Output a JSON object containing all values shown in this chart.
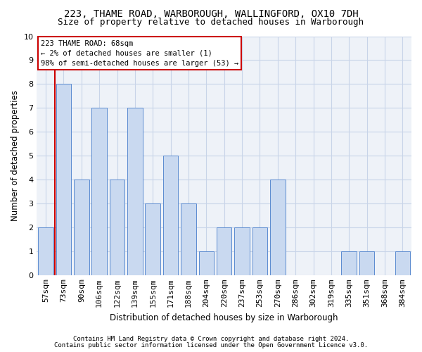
{
  "title_line1": "223, THAME ROAD, WARBOROUGH, WALLINGFORD, OX10 7DH",
  "title_line2": "Size of property relative to detached houses in Warborough",
  "xlabel": "Distribution of detached houses by size in Warborough",
  "ylabel": "Number of detached properties",
  "categories": [
    "57sqm",
    "73sqm",
    "90sqm",
    "106sqm",
    "122sqm",
    "139sqm",
    "155sqm",
    "171sqm",
    "188sqm",
    "204sqm",
    "220sqm",
    "237sqm",
    "253sqm",
    "270sqm",
    "286sqm",
    "302sqm",
    "319sqm",
    "335sqm",
    "351sqm",
    "368sqm",
    "384sqm"
  ],
  "values": [
    2,
    8,
    4,
    7,
    4,
    7,
    3,
    5,
    3,
    1,
    2,
    2,
    2,
    4,
    0,
    0,
    0,
    1,
    1,
    0,
    1
  ],
  "bar_color": "#c9d9f0",
  "bar_edge_color": "#5b8bd0",
  "highlight_line_color": "#cc0000",
  "ylim": [
    0,
    10
  ],
  "yticks": [
    0,
    1,
    2,
    3,
    4,
    5,
    6,
    7,
    8,
    9,
    10
  ],
  "grid_color": "#c8d4e8",
  "background_color": "#eef2f8",
  "annotation_line1": "223 THAME ROAD: 68sqm",
  "annotation_line2": "← 2% of detached houses are smaller (1)",
  "annotation_line3": "98% of semi-detached houses are larger (53) →",
  "annotation_box_color": "#ffffff",
  "annotation_box_edge": "#cc0000",
  "footer_line1": "Contains HM Land Registry data © Crown copyright and database right 2024.",
  "footer_line2": "Contains public sector information licensed under the Open Government Licence v3.0.",
  "title1_fontsize": 10,
  "title2_fontsize": 9,
  "annotation_fontsize": 7.5,
  "xlabel_fontsize": 8.5,
  "ylabel_fontsize": 8.5,
  "footer_fontsize": 6.5,
  "tick_fontsize": 8
}
